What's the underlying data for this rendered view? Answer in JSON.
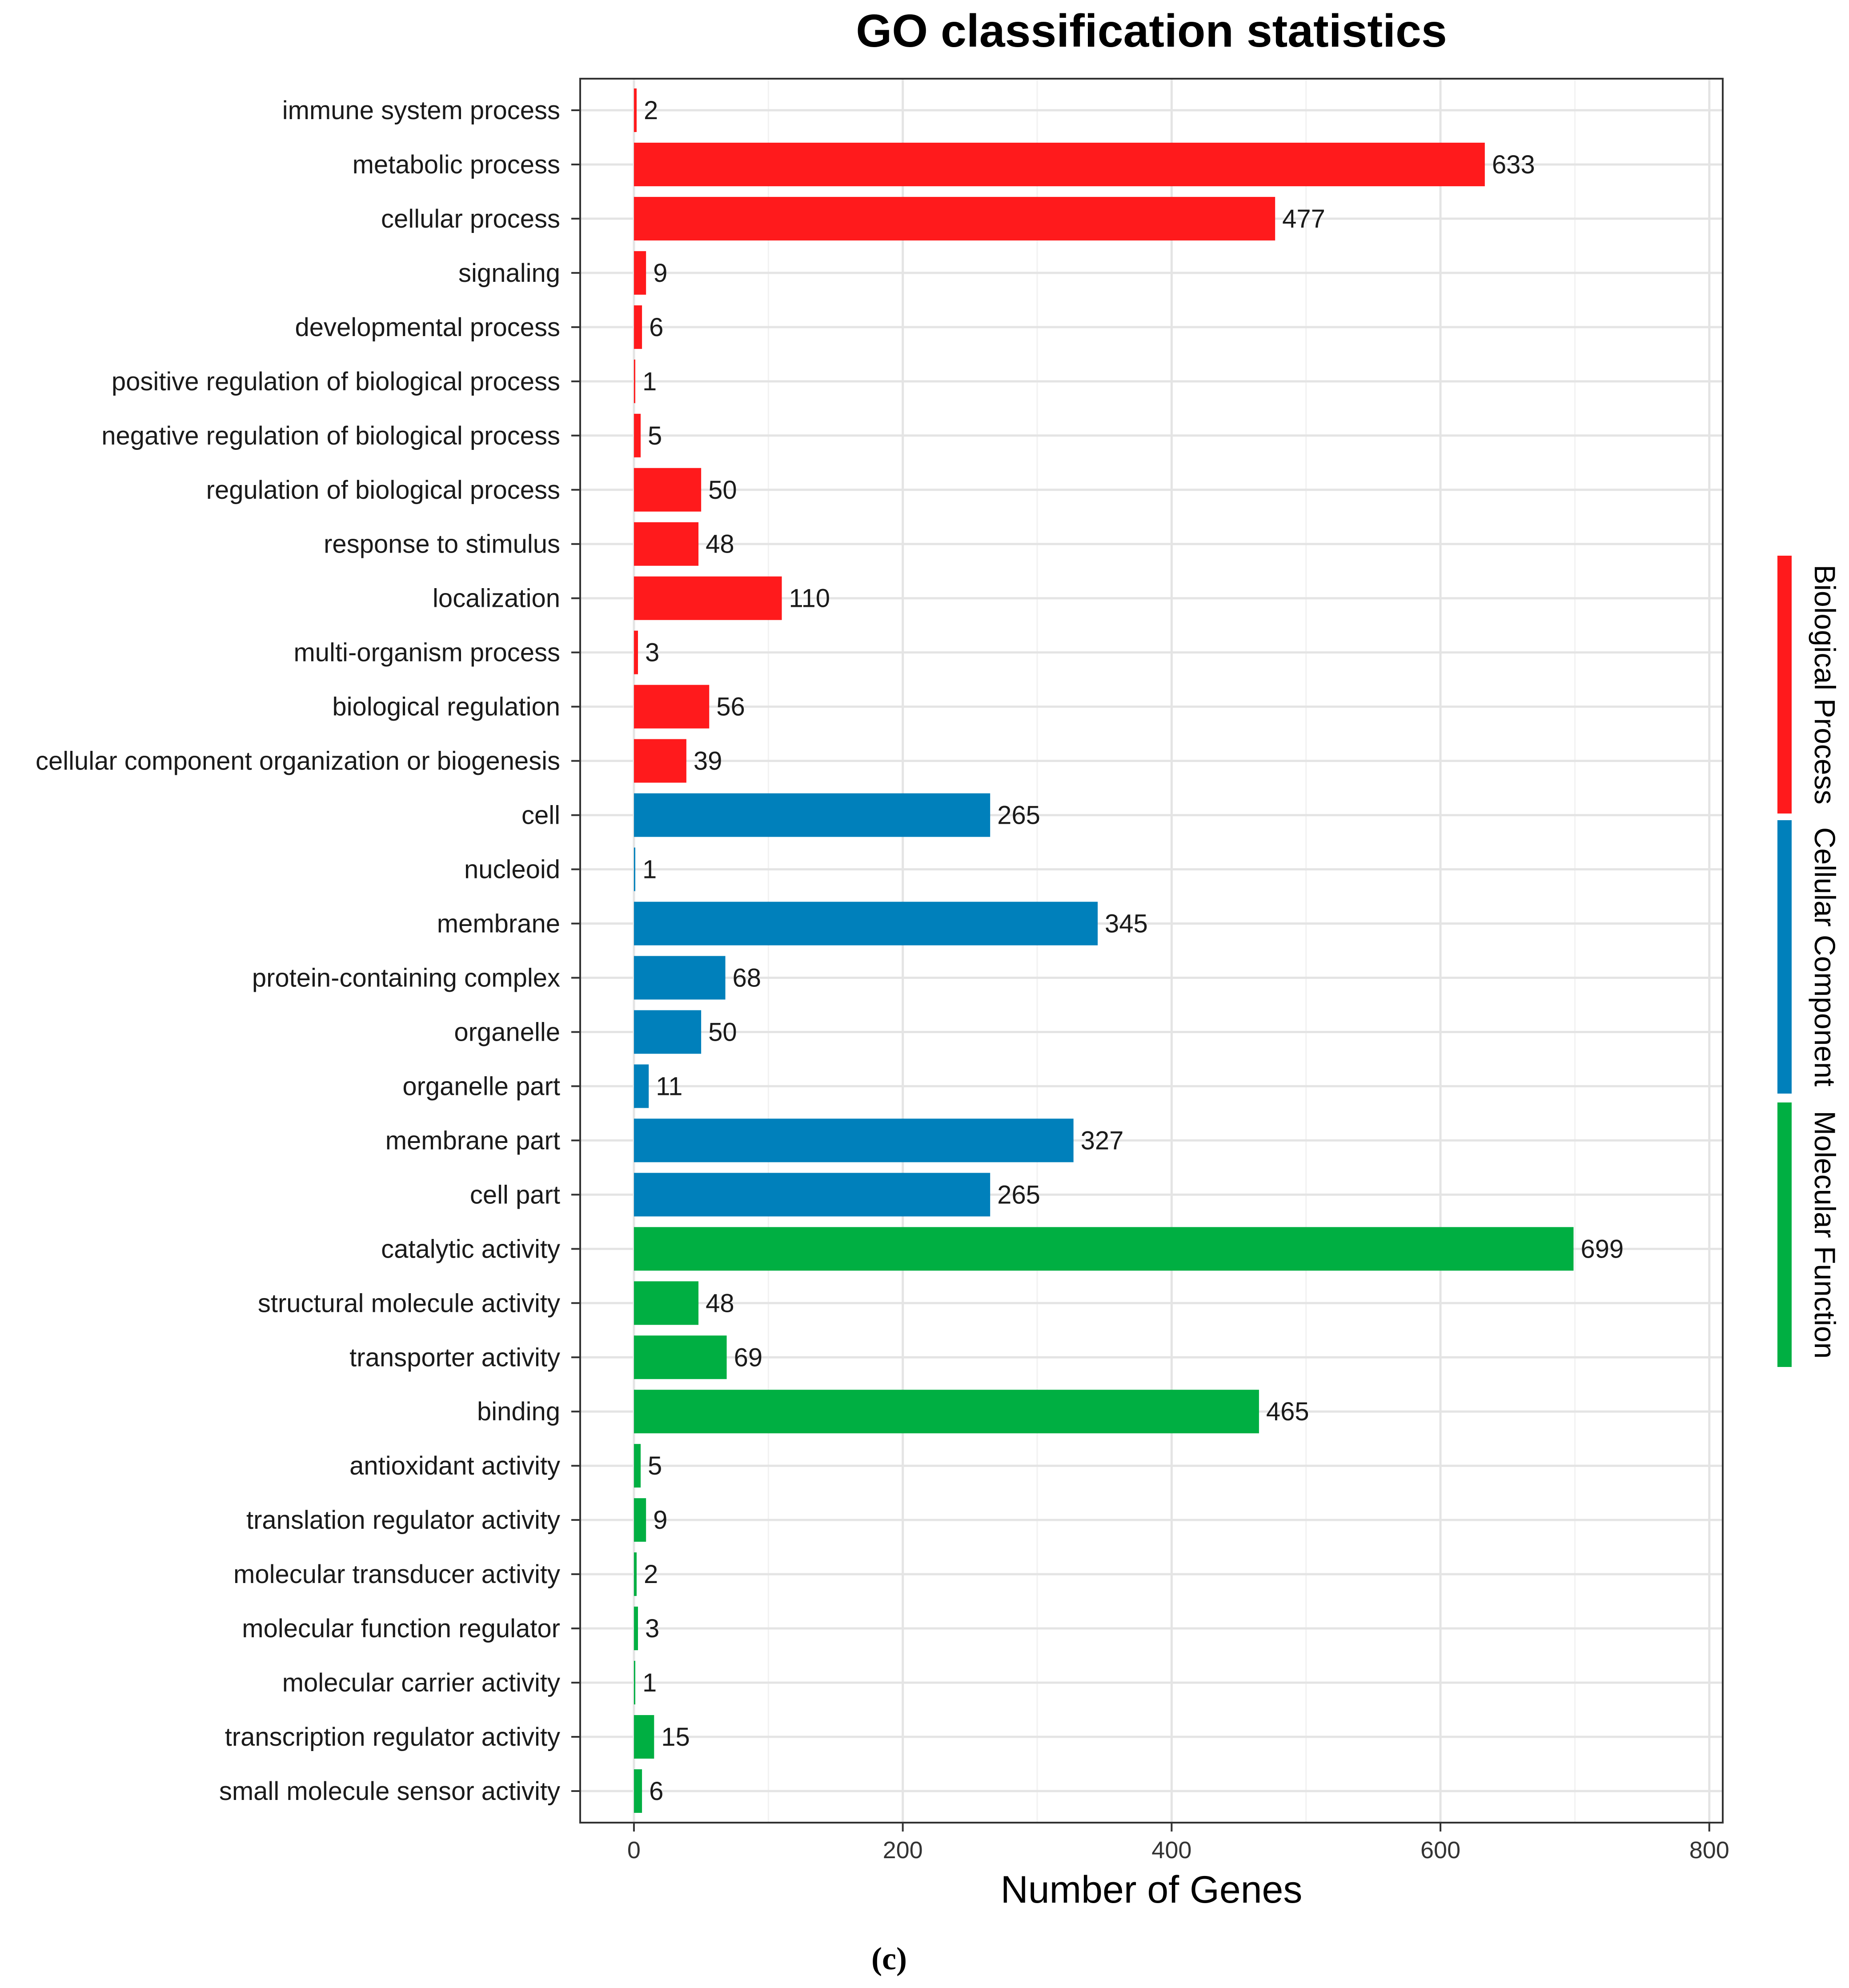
{
  "chart_data": {
    "type": "bar",
    "orientation": "horizontal",
    "title": "GO classification statistics",
    "xlabel": "Number of Genes",
    "ylabel": "",
    "xlim": [
      -40,
      810
    ],
    "xticks": [
      0,
      200,
      400,
      600,
      800
    ],
    "grid": true,
    "legend_position": "right",
    "caption": "(c)",
    "groups": [
      {
        "name": "Biological Process",
        "color": "#FF1A1C"
      },
      {
        "name": "Cellular Component",
        "color": "#0080BB"
      },
      {
        "name": "Molecular Function",
        "color": "#00AF42"
      }
    ],
    "categories": [
      "immune system process",
      "metabolic process",
      "cellular process",
      "signaling",
      "developmental process",
      "positive regulation of biological process",
      "negative regulation of biological process",
      "regulation of biological process",
      "response to stimulus",
      "localization",
      "multi-organism process",
      "biological regulation",
      "cellular component organization or biogenesis",
      "cell",
      "nucleoid",
      "membrane",
      "protein-containing complex",
      "organelle",
      "organelle part",
      "membrane part",
      "cell part",
      "catalytic activity",
      "structural molecule activity",
      "transporter activity",
      "binding",
      "antioxidant activity",
      "translation regulator activity",
      "molecular transducer activity",
      "molecular function regulator",
      "molecular carrier activity",
      "transcription regulator activity",
      "small molecule sensor activity"
    ],
    "values": [
      2,
      633,
      477,
      9,
      6,
      1,
      5,
      50,
      48,
      110,
      3,
      56,
      39,
      265,
      1,
      345,
      68,
      50,
      11,
      327,
      265,
      699,
      48,
      69,
      465,
      5,
      9,
      2,
      3,
      1,
      15,
      6
    ],
    "group_index": [
      0,
      0,
      0,
      0,
      0,
      0,
      0,
      0,
      0,
      0,
      0,
      0,
      0,
      1,
      1,
      1,
      1,
      1,
      1,
      1,
      1,
      2,
      2,
      2,
      2,
      2,
      2,
      2,
      2,
      2,
      2,
      2
    ]
  }
}
